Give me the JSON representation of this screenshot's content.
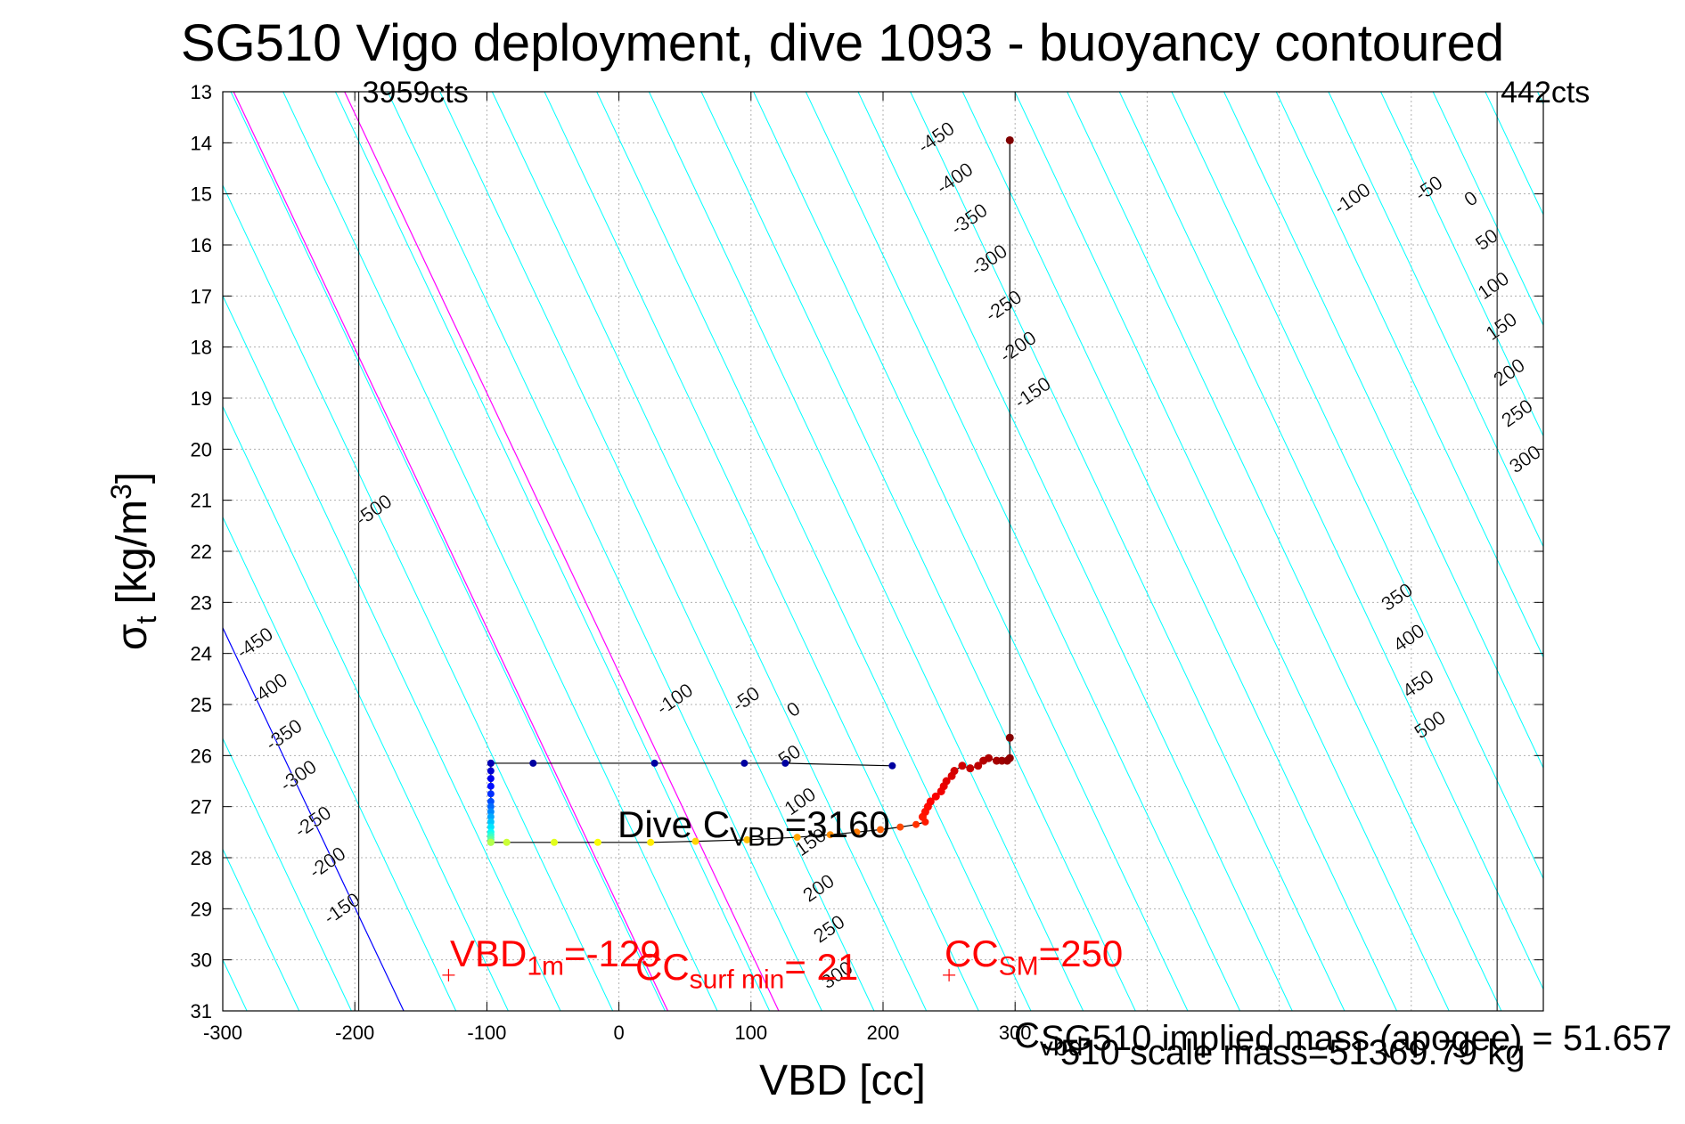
{
  "chart_data": {
    "type": "scatter",
    "title": "SG510 Vigo deployment, dive 1093 - buoyancy contoured",
    "xlabel": "VBD [cc]",
    "ylabel_main": "σ",
    "ylabel_sub": "t",
    "ylabel_unit_open": " [kg/m",
    "ylabel_unit_sup": "3",
    "ylabel_unit_close": "]",
    "xlim": [
      -300,
      700
    ],
    "ylim": [
      31,
      13
    ],
    "grid": true,
    "x_ticks": [
      "-300",
      "-200",
      "-100",
      "0",
      "100",
      "200",
      "300"
    ],
    "y_ticks": [
      "13",
      "14",
      "15",
      "16",
      "17",
      "18",
      "19",
      "20",
      "21",
      "22",
      "23",
      "24",
      "25",
      "26",
      "27",
      "28",
      "29",
      "30",
      "31"
    ],
    "vlines": [
      {
        "x": -197,
        "label": "3959cts"
      },
      {
        "x": 665,
        "label": "442cts"
      }
    ],
    "buoyancy_contour_levels": [
      -500,
      -450,
      -400,
      -350,
      -300,
      -250,
      -200,
      -150,
      -100,
      -50,
      0,
      50,
      100,
      150,
      200,
      250,
      300,
      350,
      400,
      450,
      500
    ],
    "zero_line": {
      "x0": -163,
      "y0": 31,
      "slope": 0.05475
    },
    "contour_spacing": 39.58,
    "magenta_lines": [
      {
        "x0": 37,
        "y0": 31
      },
      {
        "x0": 121,
        "y0": 31
      }
    ],
    "contour_labels": [
      {
        "text": "-500",
        "x": -183,
        "y": 21.3
      },
      {
        "text": "-450",
        "x": 243,
        "y": 14.0
      },
      {
        "text": "-400",
        "x": 257,
        "y": 14.8
      },
      {
        "text": "-350",
        "x": 268,
        "y": 15.6
      },
      {
        "text": "-300",
        "x": 283,
        "y": 16.4
      },
      {
        "text": "-250",
        "x": 294,
        "y": 17.3
      },
      {
        "text": "-200",
        "x": 305,
        "y": 18.1
      },
      {
        "text": "-150",
        "x": 316,
        "y": 19.0
      },
      {
        "text": "-100",
        "x": 558,
        "y": 15.2
      },
      {
        "text": "-50",
        "x": 616,
        "y": 15.0
      },
      {
        "text": "0",
        "x": 648,
        "y": 15.2
      },
      {
        "text": "50",
        "x": 660,
        "y": 16.0
      },
      {
        "text": "100",
        "x": 665,
        "y": 16.9
      },
      {
        "text": "150",
        "x": 671,
        "y": 17.7
      },
      {
        "text": "200",
        "x": 677,
        "y": 18.6
      },
      {
        "text": "250",
        "x": 683,
        "y": 19.4
      },
      {
        "text": "300",
        "x": 689,
        "y": 20.3
      },
      {
        "text": "-450",
        "x": -273,
        "y": 23.9
      },
      {
        "text": "-400",
        "x": -262,
        "y": 24.8
      },
      {
        "text": "-350",
        "x": -251,
        "y": 25.7
      },
      {
        "text": "-300",
        "x": -240,
        "y": 26.5
      },
      {
        "text": "-250",
        "x": -229,
        "y": 27.4
      },
      {
        "text": "-200",
        "x": -218,
        "y": 28.2
      },
      {
        "text": "-150",
        "x": -207,
        "y": 29.1
      },
      {
        "text": "-100",
        "x": 45,
        "y": 25.0
      },
      {
        "text": "-50",
        "x": 99,
        "y": 25.0
      },
      {
        "text": "0",
        "x": 135,
        "y": 25.2
      },
      {
        "text": "50",
        "x": 132,
        "y": 26.1
      },
      {
        "text": "100",
        "x": 140,
        "y": 27.0
      },
      {
        "text": "150",
        "x": 148,
        "y": 27.8
      },
      {
        "text": "200",
        "x": 154,
        "y": 28.7
      },
      {
        "text": "250",
        "x": 162,
        "y": 29.5
      },
      {
        "text": "300",
        "x": 168,
        "y": 30.4
      },
      {
        "text": "350",
        "x": 592,
        "y": 23.0
      },
      {
        "text": "400",
        "x": 601,
        "y": 23.8
      },
      {
        "text": "450",
        "x": 608,
        "y": 24.7
      },
      {
        "text": "500",
        "x": 617,
        "y": 25.5
      }
    ],
    "dive_path": {
      "x": [
        -97,
        -97,
        -97,
        -97,
        -97,
        -97,
        -97,
        -97,
        -97,
        -97,
        -97,
        -97,
        -97,
        -97,
        -97,
        -97
      ],
      "y": [
        26.15,
        26.3,
        26.45,
        26.6,
        26.75,
        26.9,
        27.0,
        27.1,
        27.2,
        27.3,
        27.4,
        27.5,
        27.55,
        27.6,
        27.65,
        27.7
      ]
    },
    "top_leg": {
      "x": [
        -97,
        -65,
        27,
        95,
        126,
        207
      ],
      "y": [
        26.15,
        26.15,
        26.15,
        26.15,
        26.15,
        26.2
      ]
    },
    "bottom_leg": {
      "x": [
        -97,
        -85,
        -49,
        -16,
        24,
        58,
        97,
        135,
        160,
        180,
        198,
        213,
        225,
        232
      ],
      "y": [
        27.7,
        27.7,
        27.7,
        27.7,
        27.7,
        27.68,
        27.65,
        27.6,
        27.55,
        27.5,
        27.45,
        27.4,
        27.35,
        27.3
      ]
    },
    "climb_points": {
      "x": [
        230,
        232,
        234,
        236,
        240,
        244,
        246,
        248,
        252,
        254,
        260,
        266,
        272,
        276,
        280,
        286,
        290,
        294,
        296,
        296,
        296
      ],
      "y": [
        27.2,
        27.1,
        27.0,
        26.9,
        26.8,
        26.7,
        26.6,
        26.5,
        26.4,
        26.3,
        26.2,
        26.25,
        26.2,
        26.1,
        26.05,
        26.1,
        26.1,
        26.1,
        26.05,
        25.65,
        13.95
      ]
    },
    "annotations": {
      "vbd1m_name": "VBD",
      "vbd1m_sub": "1m",
      "vbd1m_val": "=-129",
      "ccsurf_name": "CC",
      "ccsurf_sub": "surf min",
      "ccsurf_val": "= 21",
      "ccsm_name": "CC",
      "ccsm_sub": "SM",
      "ccsm_val": "=250",
      "dive_name": "Dive C",
      "dive_sub": "VBD",
      "dive_val": "=3160",
      "cvbd_name": "C",
      "cvbd_sub": "vbd",
      "overlap_text_1": "SG510 implied mass (apogee) = 51.657",
      "overlap_text_2": "510 scale mass=51369.79 kg"
    },
    "markers": [
      {
        "x": -129,
        "y": 30.3
      },
      {
        "x": 250,
        "y": 30.3
      }
    ],
    "colors": {
      "contour": "#00ffff",
      "zero_line": "#0000ff",
      "magenta": "#ff00ff",
      "annotation": "#ff0000",
      "grid": "#b0b0b0"
    }
  }
}
